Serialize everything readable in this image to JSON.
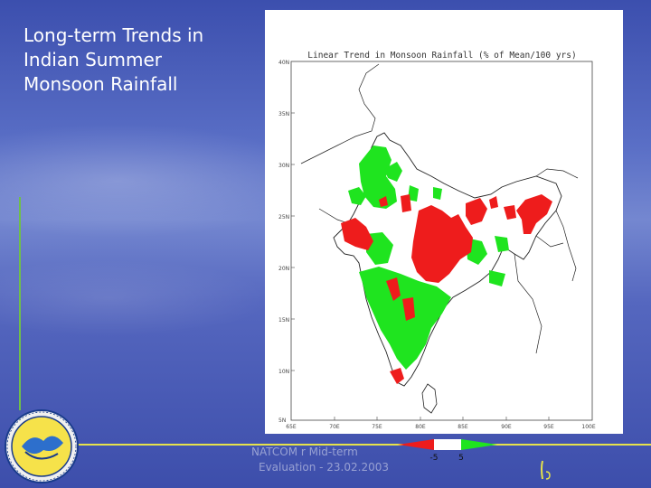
{
  "slide": {
    "title": "Long-term Trends in\nIndian Summer\nMonsoon Rainfall",
    "footer_line1": "NATCOM   r      Mid-term",
    "footer_line2": "Evaluation - 23.02.2003"
  },
  "map": {
    "title": "Linear Trend in Monsoon Rainfall (% of Mean/100 yrs)",
    "lat_labels": [
      "40N",
      "35N",
      "30N",
      "25N",
      "20N",
      "15N",
      "10N",
      "5N"
    ],
    "lon_labels": [
      "65E",
      "70E",
      "75E",
      "80E",
      "85E",
      "90E",
      "95E",
      "100E"
    ],
    "legend": {
      "low": "-5",
      "high": "5"
    },
    "colors": {
      "decrease": "#ee1c1c",
      "increase": "#1fe41f",
      "outline": "#222222"
    }
  }
}
